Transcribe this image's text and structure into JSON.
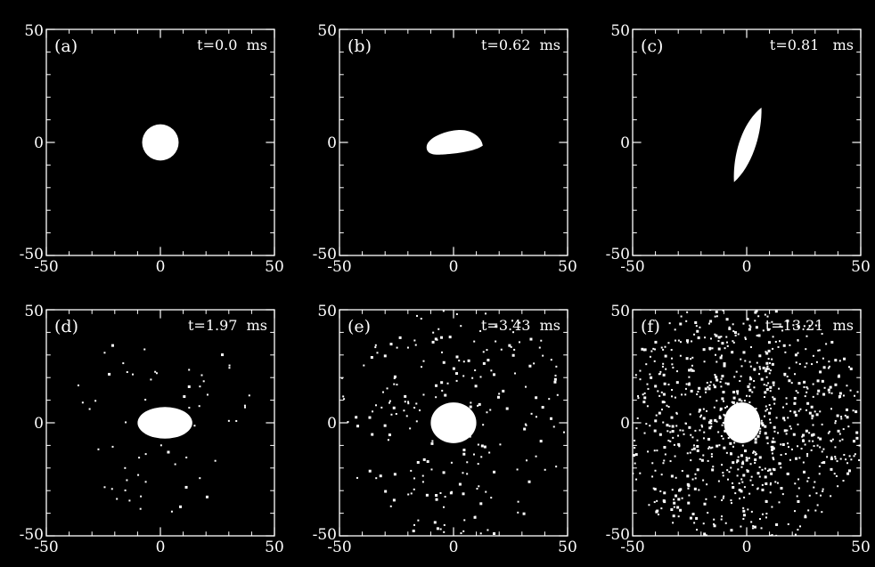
{
  "figure": {
    "background": "#000000",
    "foreground": "#ffffff"
  },
  "chart_data": [
    {
      "type": "scatter",
      "panel_label": "(a)",
      "time_label": "t=0.0  ms",
      "xlim": [
        -50,
        50
      ],
      "ylim": [
        -50,
        50
      ],
      "xticks": [
        "-50",
        "0",
        "50"
      ],
      "yticks": [
        "-50",
        "0",
        "50"
      ],
      "core": {
        "shape": "disk",
        "cx": 0,
        "cy": 0,
        "rx": 8,
        "ry": 8,
        "rotation": 0
      },
      "scatter_points": 0
    },
    {
      "type": "scatter",
      "panel_label": "(b)",
      "time_label": "t=0.62  ms",
      "xlim": [
        -50,
        50
      ],
      "ylim": [
        -50,
        50
      ],
      "xticks": [
        "-50",
        "0",
        "50"
      ],
      "yticks": [
        "-50",
        "0",
        "50"
      ],
      "core": {
        "shape": "flattened blob",
        "cx": 0,
        "cy": 0,
        "rx": 12,
        "ry": 5,
        "rotation": -6
      },
      "scatter_points": 0
    },
    {
      "type": "scatter",
      "panel_label": "(c)",
      "time_label": "t=0.81   ms",
      "xlim": [
        -50,
        50
      ],
      "ylim": [
        -50,
        50
      ],
      "xticks": [
        "-50",
        "0",
        "50"
      ],
      "yticks": [
        "-50",
        "0",
        "50"
      ],
      "core": {
        "shape": "vertical sliver",
        "cx": 1,
        "cy": -1,
        "rx": 3.5,
        "ry": 17,
        "rotation": 8
      },
      "scatter_points": 0
    },
    {
      "type": "scatter",
      "panel_label": "(d)",
      "time_label": "t=1.97  ms",
      "xlim": [
        -50,
        50
      ],
      "ylim": [
        -50,
        50
      ],
      "xticks": [
        "-50",
        "0",
        "50"
      ],
      "yticks": [
        "-50",
        "0",
        "50"
      ],
      "core": {
        "shape": "oval",
        "cx": 2,
        "cy": 0,
        "rx": 12,
        "ry": 7,
        "rotation": 0
      },
      "scatter_points": 60,
      "scatter_spread": 35
    },
    {
      "type": "scatter",
      "panel_label": "(e)",
      "time_label": "t=3.43  ms",
      "xlim": [
        -50,
        50
      ],
      "ylim": [
        -50,
        50
      ],
      "xticks": [
        "-50",
        "0",
        "50"
      ],
      "yticks": [
        "-50",
        "0",
        "50"
      ],
      "core": {
        "shape": "disk",
        "cx": 0,
        "cy": 0,
        "rx": 10,
        "ry": 9,
        "rotation": 0
      },
      "scatter_points": 230,
      "scatter_spread": 48
    },
    {
      "type": "scatter",
      "panel_label": "(f)",
      "time_label": "t=13.21  ms",
      "xlim": [
        -50,
        50
      ],
      "ylim": [
        -50,
        50
      ],
      "xticks": [
        "-50",
        "0",
        "50"
      ],
      "yticks": [
        "-50",
        "0",
        "50"
      ],
      "core": {
        "shape": "disk",
        "cx": -2,
        "cy": 0,
        "rx": 8,
        "ry": 9,
        "rotation": 0
      },
      "scatter_points": 900,
      "scatter_spread": 50
    }
  ]
}
